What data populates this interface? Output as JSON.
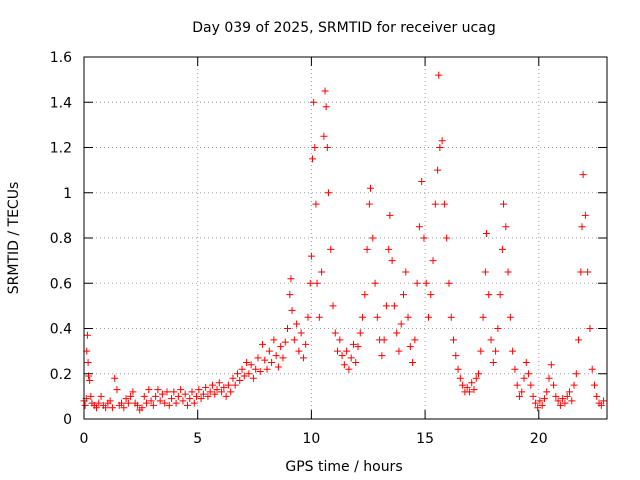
{
  "chart_data": {
    "type": "scatter",
    "title": "Day 039 of 2025, SRMTID for receiver ucag",
    "xlabel": "GPS time / hours",
    "ylabel": "SRMTID / TECUs",
    "xlim": [
      0,
      23
    ],
    "ylim": [
      0,
      1.6
    ],
    "xticks": [
      0,
      5,
      10,
      15,
      20
    ],
    "xtick_labels": [
      "0",
      "5",
      "10",
      "15",
      "20"
    ],
    "yticks": [
      0,
      0.2,
      0.4,
      0.6,
      0.8,
      1,
      1.2,
      1.4,
      1.6
    ],
    "ytick_labels": [
      "0",
      "0.2",
      "0.4",
      "0.6",
      "0.8",
      "1",
      "1.2",
      "1.4",
      "1.6"
    ],
    "grid": true,
    "marker": "+",
    "color": "#ff0000",
    "series": [
      {
        "name": "SRMTID ucag",
        "points": [
          [
            0.0,
            0.08
          ],
          [
            0.05,
            0.06
          ],
          [
            0.1,
            0.09
          ],
          [
            0.12,
            0.3
          ],
          [
            0.15,
            0.37
          ],
          [
            0.18,
            0.25
          ],
          [
            0.2,
            0.19
          ],
          [
            0.25,
            0.17
          ],
          [
            0.3,
            0.1
          ],
          [
            0.35,
            0.07
          ],
          [
            0.45,
            0.06
          ],
          [
            0.55,
            0.05
          ],
          [
            0.65,
            0.07
          ],
          [
            0.75,
            0.1
          ],
          [
            0.85,
            0.06
          ],
          [
            0.95,
            0.05
          ],
          [
            1.05,
            0.07
          ],
          [
            1.15,
            0.08
          ],
          [
            1.25,
            0.05
          ],
          [
            1.35,
            0.18
          ],
          [
            1.45,
            0.13
          ],
          [
            1.55,
            0.06
          ],
          [
            1.65,
            0.07
          ],
          [
            1.75,
            0.05
          ],
          [
            1.85,
            0.09
          ],
          [
            1.95,
            0.07
          ],
          [
            2.05,
            0.1
          ],
          [
            2.15,
            0.12
          ],
          [
            2.25,
            0.07
          ],
          [
            2.35,
            0.06
          ],
          [
            2.45,
            0.04
          ],
          [
            2.55,
            0.05
          ],
          [
            2.65,
            0.1
          ],
          [
            2.75,
            0.07
          ],
          [
            2.85,
            0.13
          ],
          [
            2.95,
            0.08
          ],
          [
            3.05,
            0.06
          ],
          [
            3.15,
            0.1
          ],
          [
            3.25,
            0.13
          ],
          [
            3.35,
            0.08
          ],
          [
            3.45,
            0.11
          ],
          [
            3.55,
            0.07
          ],
          [
            3.65,
            0.12
          ],
          [
            3.75,
            0.06
          ],
          [
            3.85,
            0.09
          ],
          [
            3.95,
            0.12
          ],
          [
            4.05,
            0.07
          ],
          [
            4.15,
            0.1
          ],
          [
            4.25,
            0.13
          ],
          [
            4.35,
            0.08
          ],
          [
            4.45,
            0.11
          ],
          [
            4.55,
            0.06
          ],
          [
            4.65,
            0.09
          ],
          [
            4.75,
            0.12
          ],
          [
            4.85,
            0.07
          ],
          [
            4.95,
            0.1
          ],
          [
            5.05,
            0.13
          ],
          [
            5.15,
            0.09
          ],
          [
            5.25,
            0.11
          ],
          [
            5.35,
            0.14
          ],
          [
            5.45,
            0.1
          ],
          [
            5.55,
            0.12
          ],
          [
            5.65,
            0.15
          ],
          [
            5.75,
            0.11
          ],
          [
            5.85,
            0.13
          ],
          [
            5.95,
            0.16
          ],
          [
            6.05,
            0.12
          ],
          [
            6.15,
            0.14
          ],
          [
            6.25,
            0.1
          ],
          [
            6.35,
            0.15
          ],
          [
            6.45,
            0.12
          ],
          [
            6.55,
            0.18
          ],
          [
            6.65,
            0.15
          ],
          [
            6.75,
            0.2
          ],
          [
            6.85,
            0.17
          ],
          [
            6.95,
            0.22
          ],
          [
            7.05,
            0.19
          ],
          [
            7.15,
            0.25
          ],
          [
            7.25,
            0.2
          ],
          [
            7.35,
            0.24
          ],
          [
            7.45,
            0.18
          ],
          [
            7.55,
            0.22
          ],
          [
            7.65,
            0.27
          ],
          [
            7.75,
            0.21
          ],
          [
            7.85,
            0.33
          ],
          [
            7.95,
            0.26
          ],
          [
            8.05,
            0.22
          ],
          [
            8.15,
            0.3
          ],
          [
            8.25,
            0.25
          ],
          [
            8.35,
            0.35
          ],
          [
            8.45,
            0.28
          ],
          [
            8.55,
            0.23
          ],
          [
            8.65,
            0.32
          ],
          [
            8.75,
            0.27
          ],
          [
            8.85,
            0.34
          ],
          [
            8.95,
            0.4
          ],
          [
            9.05,
            0.55
          ],
          [
            9.1,
            0.62
          ],
          [
            9.15,
            0.48
          ],
          [
            9.25,
            0.35
          ],
          [
            9.35,
            0.42
          ],
          [
            9.45,
            0.3
          ],
          [
            9.55,
            0.38
          ],
          [
            9.65,
            0.27
          ],
          [
            9.75,
            0.33
          ],
          [
            9.85,
            0.45
          ],
          [
            9.95,
            0.6
          ],
          [
            10.0,
            0.72
          ],
          [
            10.05,
            1.15
          ],
          [
            10.1,
            1.4
          ],
          [
            10.15,
            1.2
          ],
          [
            10.2,
            0.95
          ],
          [
            10.25,
            0.6
          ],
          [
            10.35,
            0.45
          ],
          [
            10.45,
            0.65
          ],
          [
            10.55,
            1.25
          ],
          [
            10.6,
            1.45
          ],
          [
            10.65,
            1.38
          ],
          [
            10.7,
            1.2
          ],
          [
            10.75,
            1.0
          ],
          [
            10.85,
            0.75
          ],
          [
            10.95,
            0.5
          ],
          [
            11.05,
            0.38
          ],
          [
            11.15,
            0.3
          ],
          [
            11.25,
            0.35
          ],
          [
            11.35,
            0.28
          ],
          [
            11.45,
            0.24
          ],
          [
            11.55,
            0.3
          ],
          [
            11.65,
            0.22
          ],
          [
            11.75,
            0.27
          ],
          [
            11.85,
            0.33
          ],
          [
            11.95,
            0.25
          ],
          [
            12.05,
            0.32
          ],
          [
            12.15,
            0.38
          ],
          [
            12.25,
            0.45
          ],
          [
            12.35,
            0.55
          ],
          [
            12.45,
            0.75
          ],
          [
            12.55,
            0.95
          ],
          [
            12.6,
            1.02
          ],
          [
            12.7,
            0.8
          ],
          [
            12.8,
            0.6
          ],
          [
            12.9,
            0.45
          ],
          [
            13.0,
            0.35
          ],
          [
            13.1,
            0.28
          ],
          [
            13.2,
            0.35
          ],
          [
            13.3,
            0.5
          ],
          [
            13.4,
            0.75
          ],
          [
            13.45,
            0.9
          ],
          [
            13.55,
            0.7
          ],
          [
            13.65,
            0.5
          ],
          [
            13.75,
            0.38
          ],
          [
            13.85,
            0.3
          ],
          [
            13.95,
            0.42
          ],
          [
            14.05,
            0.55
          ],
          [
            14.15,
            0.65
          ],
          [
            14.25,
            0.45
          ],
          [
            14.35,
            0.32
          ],
          [
            14.45,
            0.25
          ],
          [
            14.55,
            0.35
          ],
          [
            14.65,
            0.6
          ],
          [
            14.75,
            0.85
          ],
          [
            14.85,
            1.05
          ],
          [
            14.95,
            0.8
          ],
          [
            15.05,
            0.6
          ],
          [
            15.15,
            0.45
          ],
          [
            15.25,
            0.55
          ],
          [
            15.35,
            0.7
          ],
          [
            15.45,
            0.95
          ],
          [
            15.55,
            1.1
          ],
          [
            15.6,
            1.52
          ],
          [
            15.65,
            1.2
          ],
          [
            15.75,
            1.23
          ],
          [
            15.85,
            0.95
          ],
          [
            15.95,
            0.8
          ],
          [
            16.05,
            0.6
          ],
          [
            16.15,
            0.45
          ],
          [
            16.25,
            0.35
          ],
          [
            16.35,
            0.28
          ],
          [
            16.45,
            0.22
          ],
          [
            16.55,
            0.18
          ],
          [
            16.65,
            0.15
          ],
          [
            16.75,
            0.12
          ],
          [
            16.85,
            0.14
          ],
          [
            16.95,
            0.12
          ],
          [
            17.05,
            0.16
          ],
          [
            17.15,
            0.13
          ],
          [
            17.25,
            0.18
          ],
          [
            17.35,
            0.2
          ],
          [
            17.45,
            0.3
          ],
          [
            17.55,
            0.45
          ],
          [
            17.65,
            0.65
          ],
          [
            17.7,
            0.82
          ],
          [
            17.8,
            0.55
          ],
          [
            17.9,
            0.35
          ],
          [
            18.0,
            0.25
          ],
          [
            18.1,
            0.3
          ],
          [
            18.2,
            0.4
          ],
          [
            18.3,
            0.55
          ],
          [
            18.4,
            0.75
          ],
          [
            18.45,
            0.95
          ],
          [
            18.55,
            0.85
          ],
          [
            18.65,
            0.65
          ],
          [
            18.75,
            0.45
          ],
          [
            18.85,
            0.3
          ],
          [
            18.95,
            0.22
          ],
          [
            19.05,
            0.15
          ],
          [
            19.15,
            0.1
          ],
          [
            19.25,
            0.12
          ],
          [
            19.35,
            0.18
          ],
          [
            19.45,
            0.25
          ],
          [
            19.55,
            0.2
          ],
          [
            19.65,
            0.15
          ],
          [
            19.75,
            0.1
          ],
          [
            19.85,
            0.07
          ],
          [
            19.95,
            0.05
          ],
          [
            20.05,
            0.08
          ],
          [
            20.15,
            0.06
          ],
          [
            20.25,
            0.09
          ],
          [
            20.35,
            0.12
          ],
          [
            20.45,
            0.18
          ],
          [
            20.55,
            0.24
          ],
          [
            20.65,
            0.15
          ],
          [
            20.75,
            0.1
          ],
          [
            20.85,
            0.08
          ],
          [
            20.95,
            0.06
          ],
          [
            21.05,
            0.09
          ],
          [
            21.15,
            0.07
          ],
          [
            21.25,
            0.1
          ],
          [
            21.35,
            0.12
          ],
          [
            21.45,
            0.08
          ],
          [
            21.55,
            0.15
          ],
          [
            21.65,
            0.2
          ],
          [
            21.75,
            0.35
          ],
          [
            21.85,
            0.65
          ],
          [
            21.9,
            0.85
          ],
          [
            21.95,
            1.08
          ],
          [
            22.05,
            0.9
          ],
          [
            22.15,
            0.65
          ],
          [
            22.25,
            0.4
          ],
          [
            22.35,
            0.22
          ],
          [
            22.45,
            0.15
          ],
          [
            22.55,
            0.1
          ],
          [
            22.65,
            0.07
          ],
          [
            22.75,
            0.06
          ],
          [
            22.85,
            0.08
          ]
        ]
      }
    ]
  }
}
